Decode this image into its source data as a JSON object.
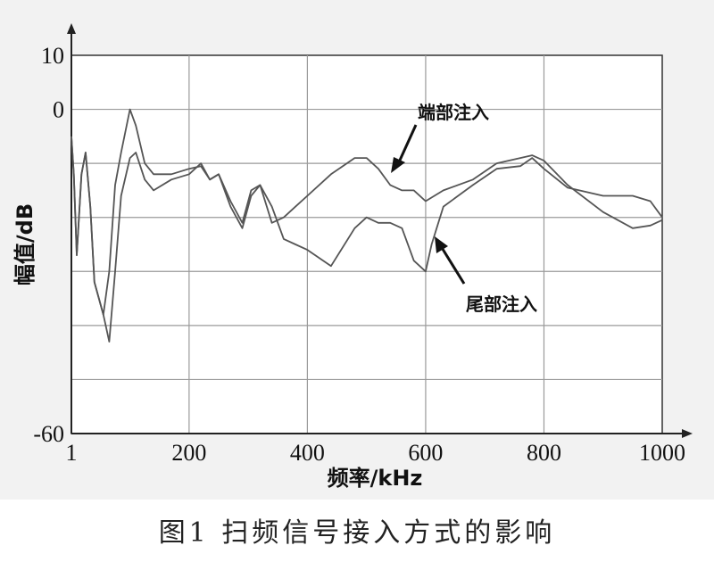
{
  "caption": "图1  扫频信号接入方式的影响",
  "chart_data": {
    "type": "line",
    "xlabel": "频率/kHz",
    "ylabel": "幅值/dB",
    "xlim": [
      1,
      1000
    ],
    "ylim": [
      -60,
      10
    ],
    "x_ticks": [
      "1",
      "200",
      "400",
      "600",
      "800",
      "1000"
    ],
    "y_ticks": [
      "10",
      "0",
      "-60"
    ],
    "grid": true,
    "line_color": "#555555",
    "series": [
      {
        "name": "端部注入",
        "x": [
          1,
          5,
          10,
          18,
          25,
          33,
          40,
          55,
          65,
          75,
          85,
          100,
          110,
          125,
          140,
          170,
          200,
          220,
          235,
          250,
          270,
          290,
          305,
          320,
          340,
          360,
          380,
          400,
          440,
          480,
          500,
          520,
          540,
          560,
          580,
          600,
          630,
          680,
          720,
          760,
          780,
          800,
          840,
          900,
          950,
          980,
          1000
        ],
        "y": [
          -5,
          -12,
          -27,
          -12,
          -8,
          -18,
          -32,
          -38,
          -30,
          -14,
          -8,
          0,
          -3,
          -10,
          -12,
          -12,
          -11,
          -10.5,
          -13,
          -12,
          -17,
          -21,
          -15,
          -14,
          -21,
          -20,
          -18,
          -16,
          -12,
          -9,
          -9,
          -11,
          -14,
          -15,
          -15,
          -17,
          -15,
          -13,
          -10,
          -9,
          -8.5,
          -9.5,
          -14,
          -19,
          -22,
          -21.5,
          -20.5
        ]
      },
      {
        "name": "尾部注入",
        "x": [
          1,
          5,
          10,
          18,
          25,
          33,
          40,
          55,
          65,
          75,
          85,
          100,
          110,
          125,
          140,
          170,
          200,
          220,
          235,
          250,
          270,
          290,
          305,
          320,
          340,
          360,
          380,
          400,
          440,
          480,
          500,
          520,
          540,
          560,
          580,
          600,
          610,
          630,
          680,
          720,
          760,
          780,
          800,
          840,
          900,
          950,
          980,
          1000
        ],
        "y": [
          -5,
          -12,
          -27,
          -12,
          -8,
          -18,
          -32,
          -38,
          -43,
          -30,
          -16,
          -9,
          -8,
          -13,
          -15,
          -13,
          -12,
          -10,
          -13,
          -12,
          -18,
          -22,
          -16,
          -14,
          -18,
          -24,
          -25,
          -26,
          -29,
          -22,
          -20,
          -21,
          -21,
          -22,
          -28,
          -30,
          -25,
          -18,
          -14,
          -11,
          -10.5,
          -9,
          -11,
          -14.5,
          -16,
          -16,
          -17,
          -20
        ]
      }
    ],
    "annotations": [
      {
        "text": "端部注入",
        "series": "端部注入"
      },
      {
        "text": "尾部注入",
        "series": "尾部注入"
      }
    ]
  }
}
